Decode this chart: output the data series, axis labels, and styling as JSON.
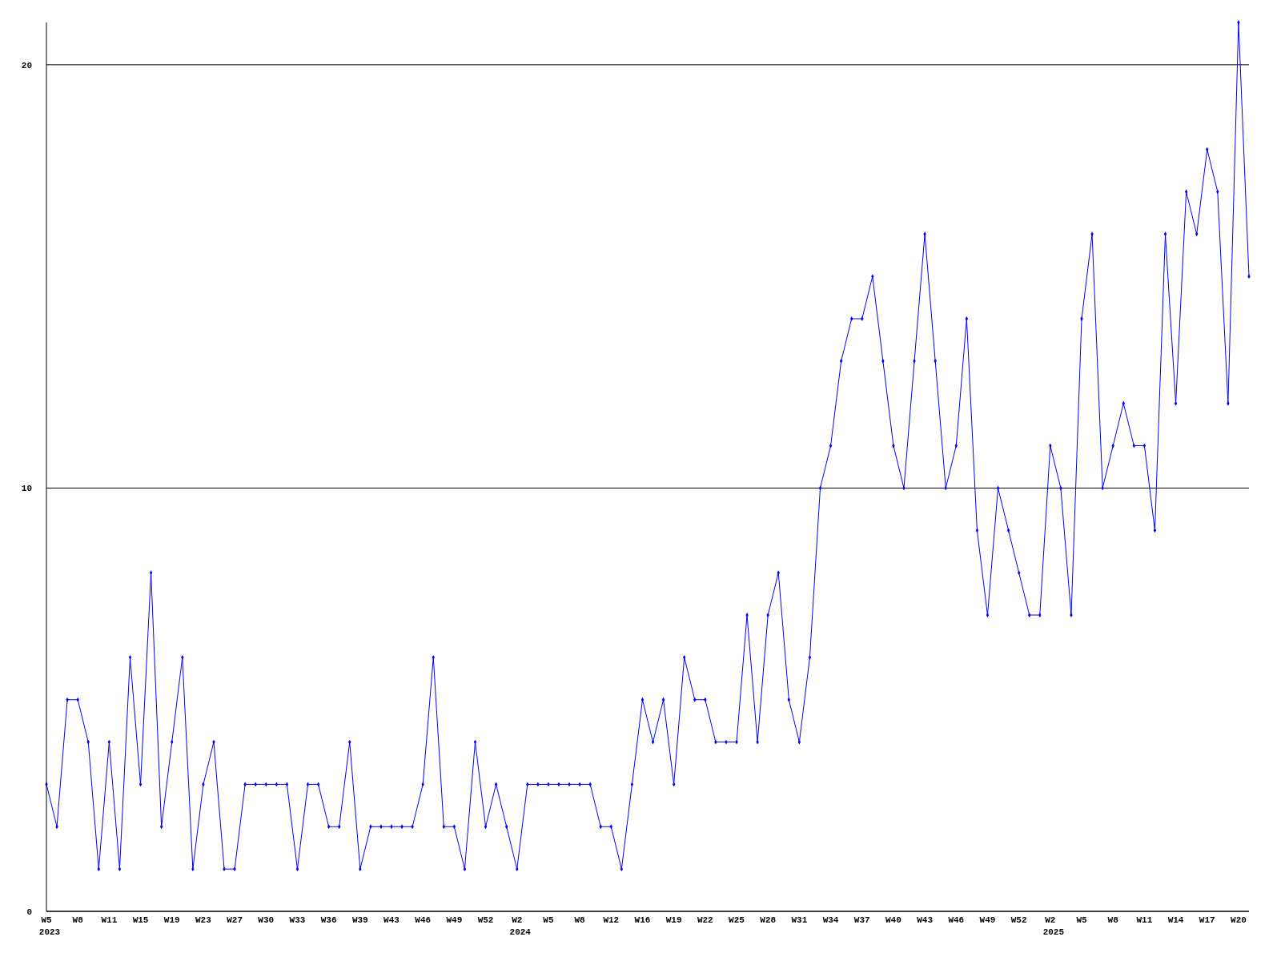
{
  "chart_data": {
    "type": "line",
    "categories": [
      "W5\n2023",
      null,
      null,
      "W8",
      null,
      null,
      "W11",
      null,
      null,
      "W15",
      null,
      null,
      "W19",
      null,
      null,
      "W23",
      null,
      null,
      "W27",
      null,
      null,
      "W30",
      null,
      null,
      "W33",
      null,
      null,
      "W36",
      null,
      null,
      "W39",
      null,
      null,
      "W43",
      null,
      null,
      "W46",
      null,
      null,
      "W49",
      null,
      null,
      "W52",
      null,
      null,
      "W2\n2024",
      null,
      null,
      "W5",
      null,
      null,
      "W8",
      null,
      null,
      "W12",
      null,
      null,
      "W16",
      null,
      null,
      "W19",
      null,
      null,
      "W22",
      null,
      null,
      "W25",
      null,
      null,
      "W28",
      null,
      null,
      "W31",
      null,
      null,
      "W34",
      null,
      null,
      "W37",
      null,
      null,
      "W40",
      null,
      null,
      "W43",
      null,
      null,
      "W46",
      null,
      null,
      "W49",
      null,
      null,
      "W52",
      null,
      null,
      "W2\n2025",
      null,
      null,
      "W5",
      null,
      null,
      "W8",
      null,
      null,
      "W11",
      null,
      null,
      "W14",
      null,
      null,
      "W17",
      null,
      null,
      "W20",
      null
    ],
    "series": [
      {
        "color": "#0000ff",
        "values": [
          3,
          2,
          5,
          5,
          4,
          1,
          4,
          1,
          6,
          3,
          8,
          2,
          4,
          6,
          1,
          3,
          4,
          1,
          1,
          3,
          3,
          3,
          3,
          3,
          1,
          3,
          3,
          2,
          2,
          4,
          1,
          2,
          2,
          2,
          2,
          2,
          3,
          6,
          2,
          2,
          1,
          4,
          2,
          3,
          2,
          1,
          3,
          3,
          3,
          3,
          3,
          3,
          3,
          2,
          2,
          1,
          3,
          5,
          4,
          5,
          3,
          6,
          5,
          5,
          4,
          4,
          4,
          7,
          4,
          7,
          8,
          5,
          4,
          6,
          10,
          11,
          13,
          14,
          14,
          15,
          13,
          11,
          10,
          13,
          16,
          13,
          10,
          11,
          14,
          9,
          7,
          10,
          9,
          8,
          7,
          7,
          11,
          10,
          7,
          14,
          16,
          10,
          11,
          12,
          11,
          11,
          9,
          16,
          12,
          17,
          16,
          18,
          17,
          12,
          21,
          15
        ]
      }
    ],
    "ylim": [
      0,
      21
    ],
    "yticks": [
      0,
      10,
      20
    ],
    "grid": "y",
    "marker": "diamond",
    "line_style": "solid"
  }
}
